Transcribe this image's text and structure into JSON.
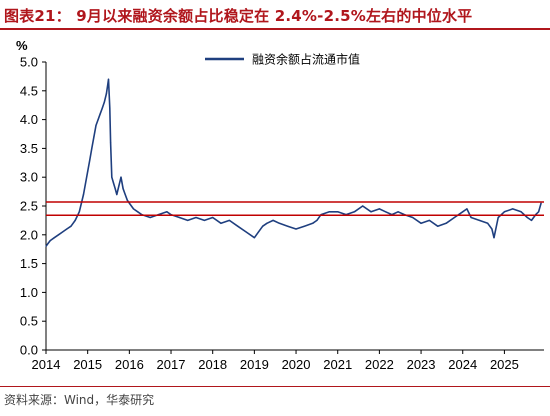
{
  "figure": {
    "title": "图表21： 9月以来融资余额占比稳定在 2.4%-2.5%左右的中位水平",
    "source": "资料来源：Wind，华泰研究"
  },
  "chart_data": {
    "type": "line",
    "title": "图表21： 9月以来融资余额占比稳定在 2.4%-2.5%左右的中位水平",
    "ylabel": "%",
    "xlabel": "",
    "ylim": [
      0.0,
      5.0
    ],
    "yticks": [
      "0.0",
      "0.5",
      "1.0",
      "1.5",
      "2.0",
      "2.5",
      "3.0",
      "3.5",
      "4.0",
      "4.5",
      "5.0"
    ],
    "xlim": [
      2014.0,
      2025.95
    ],
    "xticks": [
      "2014",
      "2015",
      "2016",
      "2017",
      "2018",
      "2019",
      "2020",
      "2021",
      "2022",
      "2023",
      "2024",
      "2025"
    ],
    "grid": false,
    "legend_position": "top-right",
    "series": [
      {
        "name": "融资余额占流通市值",
        "color": "#1f3f7f",
        "x": [
          2014.0,
          2014.05,
          2014.1,
          2014.2,
          2014.3,
          2014.4,
          2014.5,
          2014.6,
          2014.7,
          2014.8,
          2014.9,
          2015.0,
          2015.05,
          2015.1,
          2015.15,
          2015.2,
          2015.25,
          2015.3,
          2015.35,
          2015.4,
          2015.45,
          2015.48,
          2015.5,
          2015.53,
          2015.55,
          2015.58,
          2015.62,
          2015.66,
          2015.7,
          2015.75,
          2015.8,
          2015.85,
          2015.9,
          2015.95,
          2016.0,
          2016.1,
          2016.2,
          2016.3,
          2016.5,
          2016.7,
          2016.9,
          2017.0,
          2017.2,
          2017.4,
          2017.6,
          2017.8,
          2018.0,
          2018.2,
          2018.4,
          2018.6,
          2018.8,
          2019.0,
          2019.1,
          2019.2,
          2019.3,
          2019.45,
          2019.6,
          2019.8,
          2020.0,
          2020.2,
          2020.4,
          2020.5,
          2020.6,
          2020.8,
          2021.0,
          2021.2,
          2021.4,
          2021.6,
          2021.8,
          2022.0,
          2022.15,
          2022.3,
          2022.45,
          2022.6,
          2022.8,
          2023.0,
          2023.2,
          2023.4,
          2023.6,
          2023.8,
          2024.0,
          2024.1,
          2024.2,
          2024.4,
          2024.6,
          2024.7,
          2024.75,
          2024.85,
          2025.0,
          2025.2,
          2025.4,
          2025.55,
          2025.65,
          2025.75,
          2025.82,
          2025.88
        ],
        "y": [
          1.8,
          1.85,
          1.9,
          1.95,
          2.0,
          2.05,
          2.1,
          2.15,
          2.25,
          2.4,
          2.7,
          3.1,
          3.3,
          3.5,
          3.7,
          3.9,
          4.0,
          4.1,
          4.2,
          4.3,
          4.45,
          4.6,
          4.7,
          4.2,
          3.6,
          3.0,
          2.9,
          2.8,
          2.7,
          2.85,
          3.0,
          2.8,
          2.7,
          2.6,
          2.55,
          2.45,
          2.4,
          2.35,
          2.3,
          2.35,
          2.4,
          2.35,
          2.3,
          2.25,
          2.3,
          2.25,
          2.3,
          2.2,
          2.25,
          2.15,
          2.05,
          1.95,
          2.05,
          2.15,
          2.2,
          2.25,
          2.2,
          2.15,
          2.1,
          2.15,
          2.2,
          2.25,
          2.35,
          2.4,
          2.4,
          2.35,
          2.4,
          2.5,
          2.4,
          2.45,
          2.4,
          2.35,
          2.4,
          2.35,
          2.3,
          2.2,
          2.25,
          2.15,
          2.2,
          2.3,
          2.4,
          2.45,
          2.3,
          2.25,
          2.2,
          2.1,
          1.95,
          2.3,
          2.4,
          2.45,
          2.4,
          2.3,
          2.25,
          2.35,
          2.4,
          2.55
        ]
      },
      {
        "name": "",
        "color": "#c00000",
        "x": [
          2014.0,
          2025.95
        ],
        "y": [
          2.57,
          2.57
        ]
      },
      {
        "name": "",
        "color": "#c00000",
        "x": [
          2014.0,
          2025.95
        ],
        "y": [
          2.34,
          2.34
        ]
      }
    ]
  }
}
